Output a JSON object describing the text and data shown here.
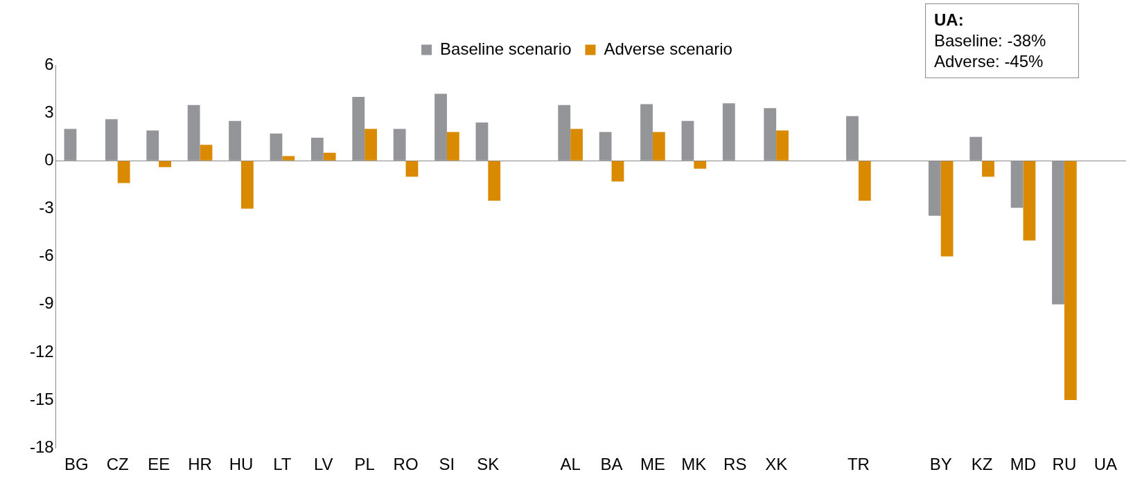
{
  "chart_data": {
    "type": "bar",
    "categories": [
      "BG",
      "CZ",
      "EE",
      "HR",
      "HU",
      "LT",
      "LV",
      "PL",
      "RO",
      "SI",
      "SK",
      null,
      "AL",
      "BA",
      "ME",
      "MK",
      "RS",
      "XK",
      null,
      "TR",
      null,
      "BY",
      "KZ",
      "MD",
      "RU",
      "UA"
    ],
    "series": [
      {
        "name": "Baseline scenario",
        "color": "#939598",
        "values": [
          2.0,
          2.6,
          1.9,
          3.5,
          2.5,
          1.7,
          1.45,
          4.0,
          2.0,
          4.2,
          2.4,
          null,
          3.5,
          1.8,
          3.55,
          2.5,
          3.6,
          3.3,
          null,
          2.8,
          null,
          -3.45,
          1.5,
          -2.95,
          -9,
          null
        ]
      },
      {
        "name": "Adverse scenario",
        "color": "#da8a00",
        "values": [
          null,
          -1.4,
          -0.4,
          1.0,
          -3.0,
          0.3,
          0.5,
          2.0,
          -1.0,
          1.8,
          -2.5,
          null,
          2.0,
          -1.3,
          1.8,
          -0.5,
          null,
          1.9,
          null,
          -2.5,
          null,
          -6.0,
          -1.0,
          -5.0,
          -15,
          null
        ]
      }
    ],
    "ylim": [
      -18,
      6
    ],
    "yticks": [
      -18,
      -15,
      -12,
      -9,
      -6,
      -3,
      0,
      3,
      6
    ],
    "legend": "top",
    "annotations": [
      "UA:",
      "Baseline: -38%",
      "Adverse: -45%"
    ]
  }
}
